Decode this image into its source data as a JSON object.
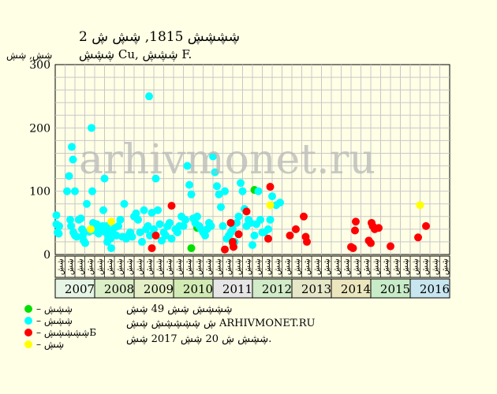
{
  "header": {
    "title_line1": "2 ڜڜڜڜ 1815, ڜڜ ڜ",
    "title_line2": "ڜڜڜ Cu, ڜڜڜ F."
  },
  "watermark": "arhivmonet.ru",
  "info": {
    "line1": "ڜڜڜڜ ڜڜ 49 ڜڜ",
    "line2": "ڜ ڜڜڜڜڜ ڜڜ ARHIVMONET.RU",
    "line3": "ڜڜڜ ڜ 20 ڜڜ 2017 ڜڜ."
  },
  "colors": {
    "background": "#ffffe6",
    "plot_bg": "#ffffe6",
    "grid": "#c8c8c8",
    "green": "#00e000",
    "cyan": "#00ffff",
    "red": "#ff0000",
    "yellow": "#ffff00",
    "year_colors": [
      "#e6f5e6",
      "#dcefc8",
      "#e6f0c8",
      "#d2ebb4",
      "#e6e6e6",
      "#d2ebc8",
      "#e6e6c8",
      "#ebe6be",
      "#c8ebc8",
      "#c8e6f0"
    ]
  },
  "chart_data": {
    "type": "scatter",
    "ylabel": "ڜڜ, ڜڜ",
    "ylim": [
      0,
      300
    ],
    "yticks": [
      0,
      100,
      200,
      300
    ],
    "grid": true,
    "years": [
      "2007",
      "2008",
      "2009",
      "2010",
      "2011",
      "2012",
      "2013",
      "2014",
      "2015",
      "2016"
    ],
    "quarter_labels": [
      "ڜڜ",
      "ڜڜ",
      "ڜڜ",
      "ڜڜ"
    ],
    "x_note": "x = years since start of 2007 on the year axis",
    "series": [
      {
        "name": "– ڜڜڜ",
        "color": "green",
        "points": [
          [
            3.6,
            42
          ],
          [
            3.45,
            10
          ],
          [
            4.5,
            18
          ],
          [
            5.05,
            102
          ]
        ]
      },
      {
        "name": "– ڜڜڜ",
        "color": "cyan",
        "points": [
          [
            0.03,
            62
          ],
          [
            0.03,
            48
          ],
          [
            0.06,
            35
          ],
          [
            0.09,
            33
          ],
          [
            0.1,
            45
          ],
          [
            0.3,
            100
          ],
          [
            0.35,
            124
          ],
          [
            0.42,
            170
          ],
          [
            0.45,
            150
          ],
          [
            0.5,
            100
          ],
          [
            0.38,
            55
          ],
          [
            0.4,
            45
          ],
          [
            0.46,
            35
          ],
          [
            0.5,
            30
          ],
          [
            0.55,
            28
          ],
          [
            0.6,
            55
          ],
          [
            0.65,
            57
          ],
          [
            0.68,
            40
          ],
          [
            0.7,
            30
          ],
          [
            0.72,
            22
          ],
          [
            0.76,
            18
          ],
          [
            0.8,
            80
          ],
          [
            0.86,
            36
          ],
          [
            0.9,
            40
          ],
          [
            0.92,
            200
          ],
          [
            0.94,
            100
          ],
          [
            0.96,
            50
          ],
          [
            0.98,
            38
          ],
          [
            1.05,
            48
          ],
          [
            1.1,
            33
          ],
          [
            1.15,
            40
          ],
          [
            1.2,
            45
          ],
          [
            1.22,
            70
          ],
          [
            1.25,
            120
          ],
          [
            1.28,
            35
          ],
          [
            1.3,
            45
          ],
          [
            1.32,
            20
          ],
          [
            1.35,
            28
          ],
          [
            1.38,
            35
          ],
          [
            1.4,
            25
          ],
          [
            1.42,
            10
          ],
          [
            1.45,
            38
          ],
          [
            1.5,
            42
          ],
          [
            1.55,
            30
          ],
          [
            1.6,
            45
          ],
          [
            1.65,
            55
          ],
          [
            1.7,
            28
          ],
          [
            1.75,
            80
          ],
          [
            1.8,
            25
          ],
          [
            1.85,
            30
          ],
          [
            1.9,
            35
          ],
          [
            1.95,
            28
          ],
          [
            2.0,
            60
          ],
          [
            2.05,
            65
          ],
          [
            2.1,
            55
          ],
          [
            2.15,
            35
          ],
          [
            2.2,
            20
          ],
          [
            2.25,
            70
          ],
          [
            2.3,
            40
          ],
          [
            2.35,
            45
          ],
          [
            2.38,
            250
          ],
          [
            2.4,
            30
          ],
          [
            2.45,
            66
          ],
          [
            2.5,
            40
          ],
          [
            2.55,
            120
          ],
          [
            2.6,
            70
          ],
          [
            2.65,
            48
          ],
          [
            2.7,
            22
          ],
          [
            2.75,
            35
          ],
          [
            2.8,
            30
          ],
          [
            2.85,
            45
          ],
          [
            2.9,
            50
          ],
          [
            2.95,
            25
          ],
          [
            3.05,
            40
          ],
          [
            3.1,
            35
          ],
          [
            3.15,
            45
          ],
          [
            3.2,
            60
          ],
          [
            3.25,
            45
          ],
          [
            3.3,
            55
          ],
          [
            3.35,
            140
          ],
          [
            3.4,
            110
          ],
          [
            3.45,
            95
          ],
          [
            3.5,
            57
          ],
          [
            3.55,
            50
          ],
          [
            3.6,
            60
          ],
          [
            3.65,
            45
          ],
          [
            3.7,
            40
          ],
          [
            3.75,
            35
          ],
          [
            3.8,
            30
          ],
          [
            3.85,
            40
          ],
          [
            3.9,
            50
          ],
          [
            3.95,
            45
          ],
          [
            4.0,
            155
          ],
          [
            4.05,
            130
          ],
          [
            4.1,
            108
          ],
          [
            4.15,
            95
          ],
          [
            4.2,
            75
          ],
          [
            4.25,
            45
          ],
          [
            4.3,
            100
          ],
          [
            4.35,
            25
          ],
          [
            4.4,
            30
          ],
          [
            4.45,
            35
          ],
          [
            4.5,
            40
          ],
          [
            4.55,
            20
          ],
          [
            4.6,
            50
          ],
          [
            4.65,
            60
          ],
          [
            4.7,
            113
          ],
          [
            4.75,
            100
          ],
          [
            4.8,
            72
          ],
          [
            4.85,
            45
          ],
          [
            4.9,
            55
          ],
          [
            4.95,
            50
          ],
          [
            5.0,
            15
          ],
          [
            5.05,
            30
          ],
          [
            5.1,
            48
          ],
          [
            5.15,
            100
          ],
          [
            5.2,
            55
          ],
          [
            5.25,
            35
          ],
          [
            5.3,
            35
          ],
          [
            5.4,
            40
          ],
          [
            5.45,
            55
          ],
          [
            5.5,
            92
          ],
          [
            5.6,
            78
          ],
          [
            5.7,
            82
          ]
        ]
      },
      {
        "name": "– ڜڜڜڜڜБ",
        "color": "red",
        "points": [
          [
            2.45,
            10
          ],
          [
            2.55,
            30
          ],
          [
            2.95,
            77
          ],
          [
            4.3,
            8
          ],
          [
            4.45,
            50
          ],
          [
            4.5,
            20
          ],
          [
            4.52,
            12
          ],
          [
            4.65,
            32
          ],
          [
            4.85,
            68
          ],
          [
            5.4,
            25
          ],
          [
            5.45,
            107
          ],
          [
            5.95,
            30
          ],
          [
            6.1,
            40
          ],
          [
            6.3,
            60
          ],
          [
            6.35,
            28
          ],
          [
            6.38,
            20
          ],
          [
            7.5,
            12
          ],
          [
            7.55,
            10
          ],
          [
            7.6,
            38
          ],
          [
            7.62,
            52
          ],
          [
            7.95,
            22
          ],
          [
            8.0,
            18
          ],
          [
            8.02,
            50
          ],
          [
            8.05,
            45
          ],
          [
            8.1,
            40
          ],
          [
            8.2,
            42
          ],
          [
            8.5,
            13
          ],
          [
            9.2,
            27
          ],
          [
            9.4,
            45
          ]
        ]
      },
      {
        "name": "– ڜڜ",
        "color": "yellow",
        "points": [
          [
            0.9,
            40
          ],
          [
            1.42,
            52
          ],
          [
            5.45,
            78
          ],
          [
            9.25,
            78
          ]
        ]
      }
    ]
  }
}
